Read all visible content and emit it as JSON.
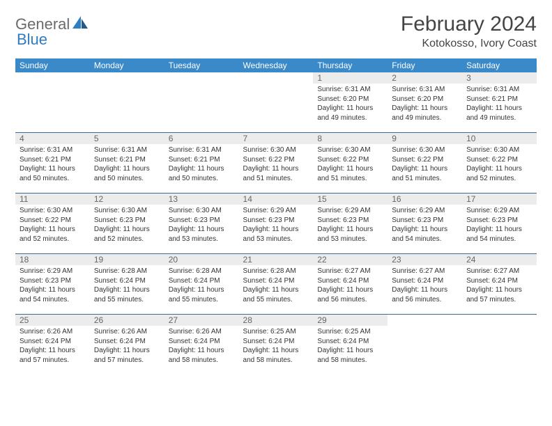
{
  "brand": {
    "part1": "General",
    "part2": "Blue"
  },
  "title": "February 2024",
  "location": "Kotokosso, Ivory Coast",
  "colors": {
    "header_bg": "#3a89c9",
    "header_fg": "#ffffff",
    "daynum_bg": "#ececec",
    "rule": "#3a6a9a",
    "brand_gray": "#6b6b6b",
    "brand_blue": "#2f7cc1"
  },
  "day_headers": [
    "Sunday",
    "Monday",
    "Tuesday",
    "Wednesday",
    "Thursday",
    "Friday",
    "Saturday"
  ],
  "weeks": [
    [
      {
        "empty": true
      },
      {
        "empty": true
      },
      {
        "empty": true
      },
      {
        "empty": true
      },
      {
        "day": "1",
        "sunrise": "Sunrise: 6:31 AM",
        "sunset": "Sunset: 6:20 PM",
        "daylight1": "Daylight: 11 hours",
        "daylight2": "and 49 minutes."
      },
      {
        "day": "2",
        "sunrise": "Sunrise: 6:31 AM",
        "sunset": "Sunset: 6:20 PM",
        "daylight1": "Daylight: 11 hours",
        "daylight2": "and 49 minutes."
      },
      {
        "day": "3",
        "sunrise": "Sunrise: 6:31 AM",
        "sunset": "Sunset: 6:21 PM",
        "daylight1": "Daylight: 11 hours",
        "daylight2": "and 49 minutes."
      }
    ],
    [
      {
        "day": "4",
        "sunrise": "Sunrise: 6:31 AM",
        "sunset": "Sunset: 6:21 PM",
        "daylight1": "Daylight: 11 hours",
        "daylight2": "and 50 minutes."
      },
      {
        "day": "5",
        "sunrise": "Sunrise: 6:31 AM",
        "sunset": "Sunset: 6:21 PM",
        "daylight1": "Daylight: 11 hours",
        "daylight2": "and 50 minutes."
      },
      {
        "day": "6",
        "sunrise": "Sunrise: 6:31 AM",
        "sunset": "Sunset: 6:21 PM",
        "daylight1": "Daylight: 11 hours",
        "daylight2": "and 50 minutes."
      },
      {
        "day": "7",
        "sunrise": "Sunrise: 6:30 AM",
        "sunset": "Sunset: 6:22 PM",
        "daylight1": "Daylight: 11 hours",
        "daylight2": "and 51 minutes."
      },
      {
        "day": "8",
        "sunrise": "Sunrise: 6:30 AM",
        "sunset": "Sunset: 6:22 PM",
        "daylight1": "Daylight: 11 hours",
        "daylight2": "and 51 minutes."
      },
      {
        "day": "9",
        "sunrise": "Sunrise: 6:30 AM",
        "sunset": "Sunset: 6:22 PM",
        "daylight1": "Daylight: 11 hours",
        "daylight2": "and 51 minutes."
      },
      {
        "day": "10",
        "sunrise": "Sunrise: 6:30 AM",
        "sunset": "Sunset: 6:22 PM",
        "daylight1": "Daylight: 11 hours",
        "daylight2": "and 52 minutes."
      }
    ],
    [
      {
        "day": "11",
        "sunrise": "Sunrise: 6:30 AM",
        "sunset": "Sunset: 6:22 PM",
        "daylight1": "Daylight: 11 hours",
        "daylight2": "and 52 minutes."
      },
      {
        "day": "12",
        "sunrise": "Sunrise: 6:30 AM",
        "sunset": "Sunset: 6:23 PM",
        "daylight1": "Daylight: 11 hours",
        "daylight2": "and 52 minutes."
      },
      {
        "day": "13",
        "sunrise": "Sunrise: 6:30 AM",
        "sunset": "Sunset: 6:23 PM",
        "daylight1": "Daylight: 11 hours",
        "daylight2": "and 53 minutes."
      },
      {
        "day": "14",
        "sunrise": "Sunrise: 6:29 AM",
        "sunset": "Sunset: 6:23 PM",
        "daylight1": "Daylight: 11 hours",
        "daylight2": "and 53 minutes."
      },
      {
        "day": "15",
        "sunrise": "Sunrise: 6:29 AM",
        "sunset": "Sunset: 6:23 PM",
        "daylight1": "Daylight: 11 hours",
        "daylight2": "and 53 minutes."
      },
      {
        "day": "16",
        "sunrise": "Sunrise: 6:29 AM",
        "sunset": "Sunset: 6:23 PM",
        "daylight1": "Daylight: 11 hours",
        "daylight2": "and 54 minutes."
      },
      {
        "day": "17",
        "sunrise": "Sunrise: 6:29 AM",
        "sunset": "Sunset: 6:23 PM",
        "daylight1": "Daylight: 11 hours",
        "daylight2": "and 54 minutes."
      }
    ],
    [
      {
        "day": "18",
        "sunrise": "Sunrise: 6:29 AM",
        "sunset": "Sunset: 6:23 PM",
        "daylight1": "Daylight: 11 hours",
        "daylight2": "and 54 minutes."
      },
      {
        "day": "19",
        "sunrise": "Sunrise: 6:28 AM",
        "sunset": "Sunset: 6:24 PM",
        "daylight1": "Daylight: 11 hours",
        "daylight2": "and 55 minutes."
      },
      {
        "day": "20",
        "sunrise": "Sunrise: 6:28 AM",
        "sunset": "Sunset: 6:24 PM",
        "daylight1": "Daylight: 11 hours",
        "daylight2": "and 55 minutes."
      },
      {
        "day": "21",
        "sunrise": "Sunrise: 6:28 AM",
        "sunset": "Sunset: 6:24 PM",
        "daylight1": "Daylight: 11 hours",
        "daylight2": "and 55 minutes."
      },
      {
        "day": "22",
        "sunrise": "Sunrise: 6:27 AM",
        "sunset": "Sunset: 6:24 PM",
        "daylight1": "Daylight: 11 hours",
        "daylight2": "and 56 minutes."
      },
      {
        "day": "23",
        "sunrise": "Sunrise: 6:27 AM",
        "sunset": "Sunset: 6:24 PM",
        "daylight1": "Daylight: 11 hours",
        "daylight2": "and 56 minutes."
      },
      {
        "day": "24",
        "sunrise": "Sunrise: 6:27 AM",
        "sunset": "Sunset: 6:24 PM",
        "daylight1": "Daylight: 11 hours",
        "daylight2": "and 57 minutes."
      }
    ],
    [
      {
        "day": "25",
        "sunrise": "Sunrise: 6:26 AM",
        "sunset": "Sunset: 6:24 PM",
        "daylight1": "Daylight: 11 hours",
        "daylight2": "and 57 minutes."
      },
      {
        "day": "26",
        "sunrise": "Sunrise: 6:26 AM",
        "sunset": "Sunset: 6:24 PM",
        "daylight1": "Daylight: 11 hours",
        "daylight2": "and 57 minutes."
      },
      {
        "day": "27",
        "sunrise": "Sunrise: 6:26 AM",
        "sunset": "Sunset: 6:24 PM",
        "daylight1": "Daylight: 11 hours",
        "daylight2": "and 58 minutes."
      },
      {
        "day": "28",
        "sunrise": "Sunrise: 6:25 AM",
        "sunset": "Sunset: 6:24 PM",
        "daylight1": "Daylight: 11 hours",
        "daylight2": "and 58 minutes."
      },
      {
        "day": "29",
        "sunrise": "Sunrise: 6:25 AM",
        "sunset": "Sunset: 6:24 PM",
        "daylight1": "Daylight: 11 hours",
        "daylight2": "and 58 minutes."
      },
      {
        "empty": true
      },
      {
        "empty": true
      }
    ]
  ]
}
